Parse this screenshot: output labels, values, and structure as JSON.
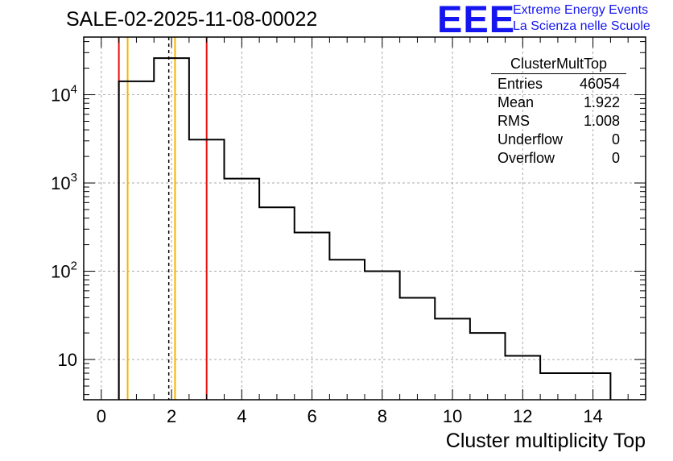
{
  "title": "SALE-02-2025-11-08-00022",
  "logo": {
    "mark": "EEE",
    "line1": "Extreme Energy Events",
    "line2": "La Scienza nelle Scuole",
    "color": "#1515f0"
  },
  "stats": {
    "name": "ClusterMultTop",
    "rows": [
      {
        "label": "Entries",
        "value": "46054"
      },
      {
        "label": "Mean",
        "value": "1.922"
      },
      {
        "label": "RMS",
        "value": "1.008"
      },
      {
        "label": "Underflow",
        "value": "0"
      },
      {
        "label": "Overflow",
        "value": "0"
      }
    ]
  },
  "chart_data": {
    "type": "histogram",
    "title": "SALE-02-2025-11-08-00022",
    "xlabel": "Cluster multiplicity Top",
    "ylabel": "",
    "xlim": [
      -0.5,
      15.5
    ],
    "ylim": [
      3.5,
      45000
    ],
    "yscale": "log",
    "grid": true,
    "bin_edges": [
      0.5,
      1.5,
      2.5,
      3.5,
      4.5,
      5.5,
      6.5,
      7.5,
      8.5,
      9.5,
      10.5,
      11.5,
      12.5,
      13.5,
      14.5
    ],
    "counts": [
      14200,
      26000,
      3100,
      1120,
      530,
      275,
      135,
      100,
      50,
      29,
      20,
      11,
      7,
      7
    ],
    "x_ticks": [
      0,
      2,
      4,
      6,
      8,
      10,
      12,
      14
    ],
    "y_ticks": [
      {
        "value": 10,
        "base": "10",
        "exp": ""
      },
      {
        "value": 100,
        "base": "10",
        "exp": "2"
      },
      {
        "value": 1000,
        "base": "10",
        "exp": "3"
      },
      {
        "value": 10000,
        "base": "10",
        "exp": "4"
      }
    ],
    "vertical_lines": [
      {
        "x": 0.5,
        "color": "#e8110f",
        "style": "solid"
      },
      {
        "x": 0.75,
        "color": "#f5b400",
        "style": "solid"
      },
      {
        "x": 1.922,
        "color": "#000000",
        "style": "dashed"
      },
      {
        "x": 2.1,
        "color": "#f5b400",
        "style": "solid"
      },
      {
        "x": 3.0,
        "color": "#e8110f",
        "style": "solid"
      }
    ]
  }
}
